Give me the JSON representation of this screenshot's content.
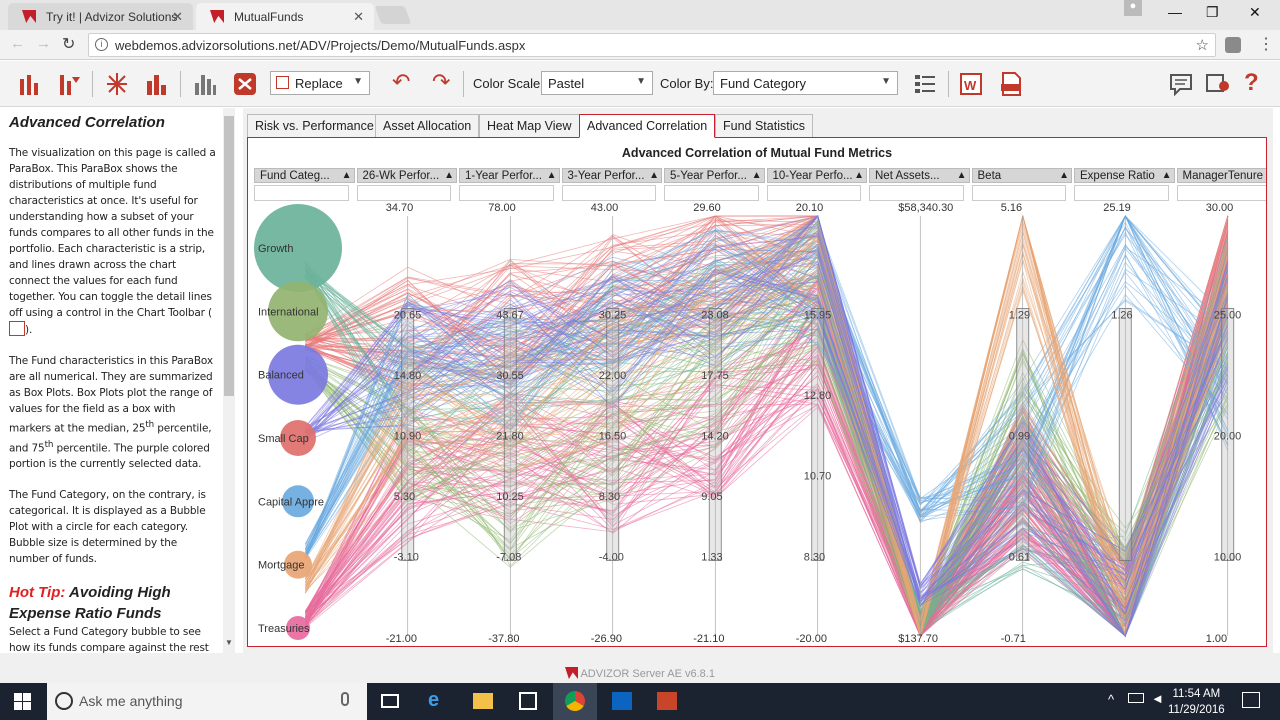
{
  "browser": {
    "tabs": [
      {
        "label": "Try it! | Advizor Solutions",
        "active": false
      },
      {
        "label": "MutualFunds",
        "active": true
      }
    ],
    "url": "webdemos.advizorsolutions.net/ADV/Projects/Demo/MutualFunds.aspx"
  },
  "toolbar": {
    "replace_label": "Replace",
    "color_scale_label": "Color Scale:",
    "color_scale_value": "Pastel",
    "color_by_label": "Color By:",
    "color_by_value": "Fund Category"
  },
  "sidebar": {
    "title": "Advanced Correlation",
    "p1": "The visualization on this page is called a ParaBox. This ParaBox shows the distributions of multiple fund characteristics at once. It's useful for understanding how a subset of your funds compares to all other funds in the portfolio.  Each characteristic is a strip, and lines drawn across the chart connect the values for each fund together.  You can toggle the detail lines off using a control in the Chart Toolbar (",
    "p1_end": ").",
    "p2a": "The Fund characteristics in this ParaBox are all numerical. They are summarized as Box Plots. Box Plots plot the range of values for the field as a box with markers at the median, 25",
    "p2_sup1": "th",
    "p2b": " percentile, and 75",
    "p2_sup2": "th",
    "p2c": " percentile.  The purple colored portion is the currently selected data.",
    "p3": "The Fund Category, on the contrary, is categorical. It is displayed as a Bubble Plot with a circle for each category. Bubble size is determined by the number of funds.",
    "tip_hot": "Hot Tip:",
    "tip_rest": " Avoiding High Expense Ratio Funds",
    "p4": "Select a Fund Category bubble to see how its funds compare against the rest"
  },
  "main_tabs": [
    "Risk vs. Performance",
    "Asset Allocation",
    "Heat Map View",
    "Advanced Correlation",
    "Fund Statistics"
  ],
  "chart_data": {
    "type": "parallel-coordinates",
    "title": "Advanced Correlation of Mutual Fund Metrics",
    "columns": [
      {
        "header": "Fund Categ...",
        "kind": "categorical",
        "categories": [
          "Growth",
          "International",
          "Balanced",
          "Small Cap",
          "Capital Appre",
          "Mortgage",
          "Treasuries"
        ],
        "bubble_colors": [
          "#6ab29a",
          "#92b370",
          "#7b79e0",
          "#e0706c",
          "#6aaae0",
          "#e8a574",
          "#e86aa0"
        ]
      },
      {
        "header": "26-Wk Perfor...",
        "max": "34.70",
        "min": "-21.00",
        "ticks": [
          "20.65",
          "14.80",
          "10.90",
          "5.30",
          "-3.10"
        ]
      },
      {
        "header": "1-Year Perfor...",
        "max": "78.00",
        "min": "-37.80",
        "ticks": [
          "43.67",
          "30.55",
          "21.80",
          "10.25",
          "-7.08"
        ]
      },
      {
        "header": "3-Year Perfor...",
        "max": "43.00",
        "min": "-26.90",
        "ticks": [
          "30.25",
          "22.00",
          "16.50",
          "8.30",
          "-4.00"
        ]
      },
      {
        "header": "5-Year Perfor...",
        "max": "29.60",
        "min": "-21.10",
        "ticks": [
          "23.08",
          "17.75",
          "14.20",
          "9.05",
          "1.33"
        ]
      },
      {
        "header": "10-Year Perfo...",
        "max": "20.10",
        "min": "-20.00",
        "ticks": [
          "15.95",
          "12.80",
          "10.70",
          "8.30"
        ]
      },
      {
        "header": "Net Assets...",
        "max": "$58,340.30",
        "min": "$137.70",
        "ticks": []
      },
      {
        "header": "Beta",
        "max": "5.16",
        "min": "-0.71",
        "ticks": [
          "1.29",
          "0.99",
          "0.61"
        ]
      },
      {
        "header": "Expense Ratio",
        "max": "25.19",
        "min": "",
        "ticks": [
          "1.26"
        ]
      },
      {
        "header": "ManagerTenure",
        "max": "30.00",
        "min": "1.00",
        "ticks": [
          "25.00",
          "20.00",
          "10.00"
        ]
      }
    ],
    "line_profiles": [
      {
        "color": "#e87878",
        "y": [
          0.3,
          0.28,
          0.26,
          0.2,
          0.12,
          0.08,
          0.98,
          0.6,
          0.97,
          0.1
        ]
      },
      {
        "color": "#e86a9a",
        "y": [
          0.96,
          0.62,
          0.58,
          0.6,
          0.52,
          0.3,
          0.98,
          0.65,
          0.98,
          0.08
        ]
      },
      {
        "color": "#8fb870",
        "y": [
          0.35,
          0.55,
          0.68,
          0.52,
          0.4,
          0.2,
          0.97,
          0.42,
          0.9,
          0.3
        ]
      },
      {
        "color": "#6ab29a",
        "y": [
          0.13,
          0.45,
          0.4,
          0.3,
          0.22,
          0.14,
          0.96,
          0.7,
          0.92,
          0.2
        ]
      },
      {
        "color": "#6aaae0",
        "y": [
          0.8,
          0.3,
          0.35,
          0.25,
          0.18,
          0.15,
          0.7,
          0.55,
          0.05,
          0.4
        ]
      },
      {
        "color": "#e8a574",
        "y": [
          0.88,
          0.5,
          0.47,
          0.38,
          0.2,
          0.1,
          0.99,
          0.02,
          0.96,
          0.15
        ]
      },
      {
        "color": "#7b79e0",
        "y": [
          0.52,
          0.35,
          0.3,
          0.3,
          0.2,
          0.12,
          0.9,
          0.64,
          0.95,
          0.25
        ]
      }
    ]
  },
  "status": "ADVIZOR Server AE v6.8.1",
  "taskbar": {
    "search_placeholder": "Ask me anything",
    "time": "11:54 AM",
    "date": "11/29/2016"
  }
}
